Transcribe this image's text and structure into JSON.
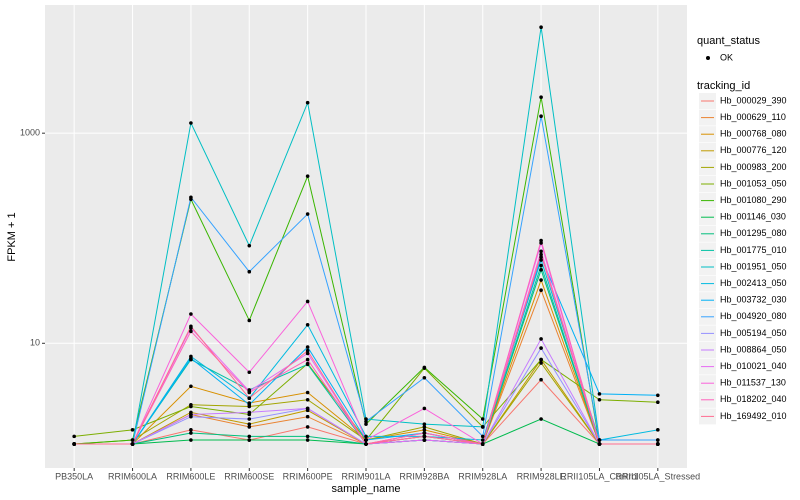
{
  "chart_data": {
    "type": "line",
    "x_label": "sample_name",
    "y_label": "FPKM + 1",
    "log_y": true,
    "grid": true,
    "ylim": [
      0.65,
      16600
    ],
    "yticks": [
      10,
      1000
    ],
    "point_color": "#000000",
    "shape_legend": {
      "title": "quant_status",
      "labels": [
        "OK"
      ]
    },
    "color_legend_title": "tracking_id",
    "categories": [
      "PB350LA",
      "RRIM600LA",
      "RRIM600LE",
      "RRIM600SE",
      "RRIM600PE",
      "RRIM901LA",
      "RRIM928BA",
      "RRIM928LA",
      "RRIM928LE",
      "RRII105LA_Control",
      "RRII105LA_Stressed"
    ],
    "series": [
      {
        "name": "Hb_000029_390",
        "color": "#F8766D",
        "values": [
          1.1,
          1.1,
          1.5,
          1.2,
          1.6,
          1.1,
          1.3,
          1.1,
          4.5,
          1.1,
          1.1
        ]
      },
      {
        "name": "Hb_000629_110",
        "color": "#EA8331",
        "values": [
          1.1,
          1.1,
          2.1,
          1.6,
          2.0,
          1.1,
          1.4,
          1.1,
          32,
          1.1,
          1.1
        ]
      },
      {
        "name": "Hb_000768_080",
        "color": "#D89000",
        "values": [
          1.1,
          1.1,
          3.9,
          2.7,
          3.4,
          1.2,
          1.5,
          1.1,
          40,
          1.1,
          1.1
        ]
      },
      {
        "name": "Hb_000776_120",
        "color": "#C09B00",
        "values": [
          1.1,
          1.1,
          2.2,
          1.7,
          2.3,
          1.1,
          1.3,
          1.1,
          7.0,
          1.1,
          1.1
        ]
      },
      {
        "name": "Hb_000983_200",
        "color": "#A3A500",
        "values": [
          1.1,
          1.2,
          2.6,
          2.5,
          2.9,
          1.2,
          1.6,
          1.1,
          6.5,
          1.1,
          1.1
        ]
      },
      {
        "name": "Hb_001053_050",
        "color": "#7CAE00",
        "values": [
          1.3,
          1.5,
          2.5,
          2.1,
          6.4,
          1.2,
          5.8,
          1.6,
          7.0,
          2.9,
          2.75
        ]
      },
      {
        "name": "Hb_001080_290",
        "color": "#39B600",
        "values": [
          1.1,
          1.2,
          235,
          16.5,
          390,
          1.7,
          5.9,
          1.9,
          2200,
          1.1,
          1.1
        ]
      },
      {
        "name": "Hb_001146_030",
        "color": "#00BB4E",
        "values": [
          1.1,
          1.1,
          1.2,
          1.2,
          1.2,
          1.1,
          1.2,
          1.1,
          1.9,
          1.1,
          1.1
        ]
      },
      {
        "name": "Hb_001295_080",
        "color": "#00BF7D",
        "values": [
          1.1,
          1.1,
          1.4,
          1.3,
          1.3,
          1.1,
          1.2,
          1.1,
          50,
          1.1,
          1.1
        ]
      },
      {
        "name": "Hb_001775_010",
        "color": "#00C1A3",
        "values": [
          1.1,
          1.1,
          7.0,
          3.6,
          6.3,
          1.1,
          1.2,
          1.1,
          55,
          1.1,
          1.1
        ]
      },
      {
        "name": "Hb_001951_050",
        "color": "#00BFC4",
        "values": [
          1.1,
          1.1,
          1250,
          85,
          1950,
          1.9,
          1.7,
          1.6,
          10200,
          1.2,
          1.2
        ]
      },
      {
        "name": "Hb_002413_050",
        "color": "#00BAE0",
        "values": [
          1.1,
          1.1,
          7.5,
          3.0,
          15,
          1.3,
          1.3,
          1.2,
          62,
          1.2,
          1.5
        ]
      },
      {
        "name": "Hb_003732_030",
        "color": "#00B0F6",
        "values": [
          1.1,
          1.1,
          7.2,
          2.6,
          9.2,
          1.2,
          1.4,
          1.1,
          66,
          3.3,
          3.2
        ]
      },
      {
        "name": "Hb_004920_080",
        "color": "#35A2FF",
        "values": [
          1.1,
          1.1,
          245,
          48,
          170,
          1.8,
          4.7,
          1.3,
          1450,
          1.2,
          1.2
        ]
      },
      {
        "name": "Hb_005194_050",
        "color": "#9590FF",
        "values": [
          1.1,
          1.1,
          2.0,
          1.9,
          2.4,
          1.1,
          1.2,
          1.1,
          9.0,
          1.1,
          1.1
        ]
      },
      {
        "name": "Hb_008864_050",
        "color": "#C77CFF",
        "values": [
          1.1,
          1.1,
          2.1,
          2.2,
          2.4,
          1.1,
          1.3,
          1.1,
          11,
          1.1,
          1.1
        ]
      },
      {
        "name": "Hb_010021_040",
        "color": "#E76BF3",
        "values": [
          1.1,
          1.1,
          14,
          3.5,
          8.0,
          1.1,
          1.2,
          1.1,
          90,
          1.1,
          1.1
        ]
      },
      {
        "name": "Hb_011537_130",
        "color": "#FA62DB",
        "values": [
          1.1,
          1.1,
          19,
          5.3,
          25,
          1.2,
          2.4,
          1.1,
          75,
          1.1,
          1.1
        ]
      },
      {
        "name": "Hb_018202_040",
        "color": "#FF62BC",
        "values": [
          1.1,
          1.1,
          13,
          3.4,
          7.0,
          1.1,
          1.4,
          1.1,
          95,
          1.1,
          1.1
        ]
      },
      {
        "name": "Hb_169492_010",
        "color": "#FF6C91",
        "values": [
          1.1,
          1.1,
          14.5,
          3.0,
          8.5,
          1.1,
          1.3,
          1.1,
          70,
          1.1,
          1.1
        ]
      }
    ]
  }
}
